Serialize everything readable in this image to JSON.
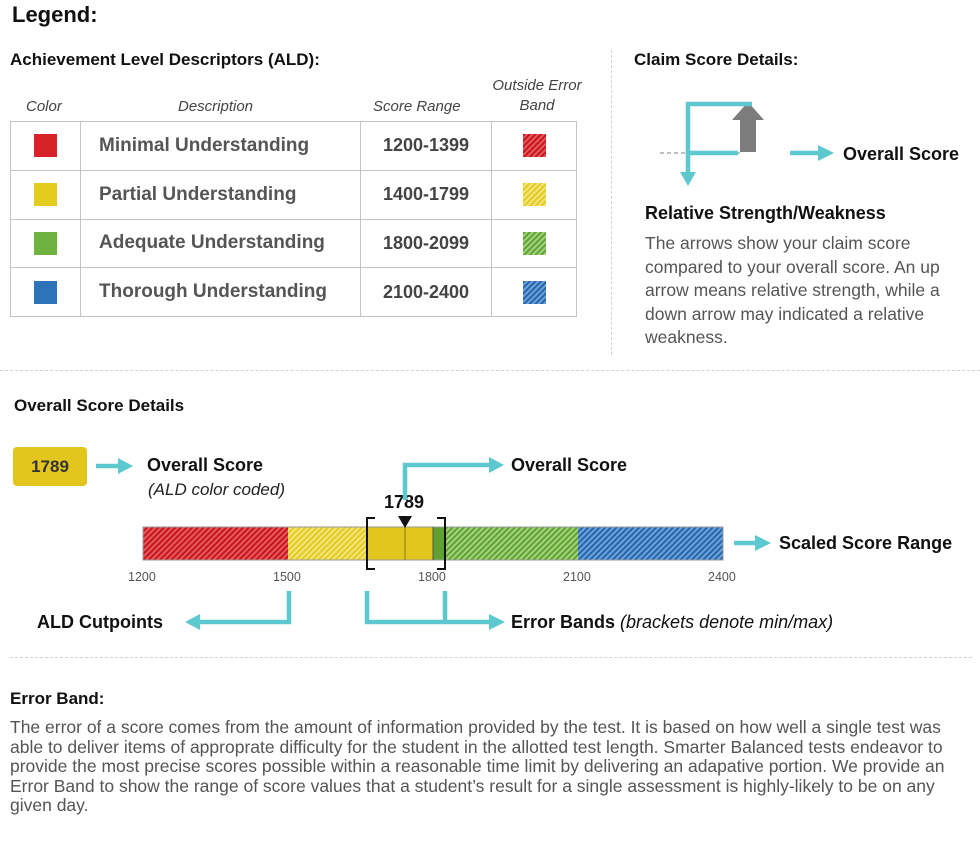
{
  "legend_title": "Legend:",
  "ald": {
    "title": "Achievement Level Descriptors (ALD):",
    "headers": {
      "color": "Color",
      "description": "Description",
      "score_range": "Score Range",
      "outside_error_band": "Outside Error Band"
    },
    "rows": [
      {
        "description": "Minimal Understanding",
        "range": "1200-1399",
        "color": "#d7222a"
      },
      {
        "description": "Partial Understanding",
        "range": "1400-1799",
        "color": "#e3cc1d"
      },
      {
        "description": "Adequate Understanding",
        "range": "1800-2099",
        "color": "#6eb33f"
      },
      {
        "description": "Thorough Understanding",
        "range": "2100-2400",
        "color": "#2c73b9"
      }
    ]
  },
  "claim": {
    "title": "Claim Score Details:",
    "overall_label": "Overall Score",
    "relative_title": "Relative Strength/Weakness",
    "relative_body": "The arrows show your claim score compared to your overall score. An up arrow means relative strength, while a down arrow may indicated a relative weakness."
  },
  "overall": {
    "title": "Overall Score Details",
    "badge_value": "1789",
    "overall_label": "Overall Score",
    "overall_sub": "(ALD color coded)",
    "overall_label_2": "Overall Score",
    "score_marker": "1789",
    "scaled_range_label": "Scaled Score Range",
    "ticks": [
      "1200",
      "1500",
      "1800",
      "2100",
      "2400"
    ],
    "cutpoints_label": "ALD Cutpoints",
    "error_bands_label": "Error Bands",
    "error_bands_note": "(brackets denote min/max)"
  },
  "error_band": {
    "title": "Error Band:",
    "body": "The error of a score comes from the amount of information provided by the test. It is based on how well a single test was able to deliver items of approprate difficulty for the student in the allotted test length. Smarter Balanced tests endeavor to provide the most precise scores possible within a reasonable time limit by delivering an adapative portion. We provide an Error Band to show the range of score values that a student’s result for a single assessment is highly-likely to be on any given day."
  },
  "colors": {
    "accent_arrow": "#5ec8cf",
    "red": "#d7222a",
    "yellow": "#e3cc1d",
    "green": "#6eb33f",
    "blue": "#2c73b9"
  }
}
